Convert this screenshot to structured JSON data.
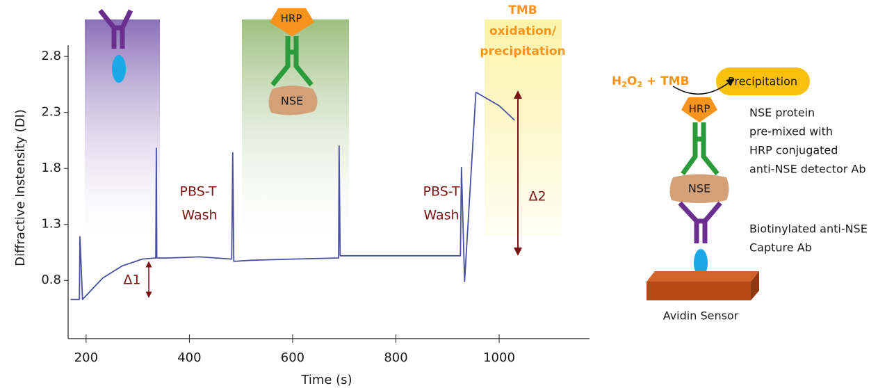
{
  "chart_data": {
    "type": "line",
    "x_label": "Time (s)",
    "y_label": "Diffractive Instensity (DI)",
    "xlim": [
      170,
      1175
    ],
    "ylim": [
      0.28,
      2.9
    ],
    "xticks": [
      200,
      400,
      600,
      800,
      1000
    ],
    "yticks": [
      0.8,
      1.3,
      1.8,
      2.3,
      2.8
    ],
    "x": [
      170,
      187,
      188,
      193,
      232,
      270,
      309,
      335,
      336,
      337,
      360,
      420,
      482,
      484,
      486,
      520,
      600,
      689,
      690,
      692,
      760,
      925,
      927,
      933,
      955,
      1000,
      1030
    ],
    "series": [
      {
        "color": "#4a4fa0",
        "values": [
          0.63,
          0.63,
          1.19,
          0.63,
          0.82,
          0.93,
          0.99,
          1.0,
          1.98,
          1.0,
          1.0,
          1.01,
          0.99,
          1.94,
          0.97,
          0.98,
          0.99,
          1.0,
          2.0,
          1.02,
          1.02,
          1.02,
          1.81,
          0.79,
          2.48,
          2.36,
          2.23
        ]
      }
    ],
    "annotations": {
      "wash_1": [
        "PBS-T",
        "Wash"
      ],
      "wash_2": [
        "PBS-T",
        "Wash"
      ],
      "delta_1": "Δ1",
      "delta_2": "Δ2",
      "tmb": [
        "TMB",
        "oxidation/",
        "precipitation"
      ],
      "band_hrp": "HRP",
      "band_nse": "NSE"
    }
  },
  "diagram": {
    "reaction": [
      "H",
      "2",
      "O",
      "2",
      " + TMB"
    ],
    "product": "Precipitation",
    "hrp": "HRP",
    "nse": "NSE",
    "detector_label": [
      "NSE protein",
      "pre-mixed with",
      "HRP conjugated",
      "anti-NSE detector Ab"
    ],
    "capture_label": [
      "Biotinylated anti-NSE",
      "Capture Ab"
    ],
    "sensor": "Avidin Sensor"
  }
}
